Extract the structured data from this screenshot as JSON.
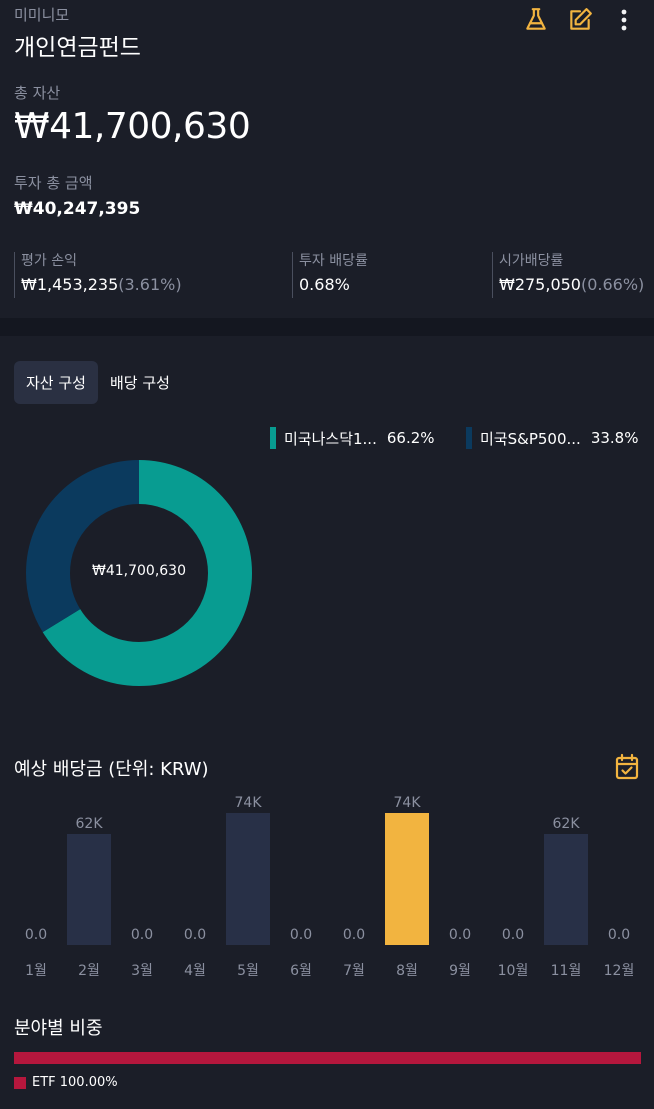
{
  "header": {
    "owner": "미미니모",
    "title": "개인연금펀드",
    "icons": [
      "flask-icon",
      "edit-icon",
      "more-vertical-icon"
    ]
  },
  "summary": {
    "total_label": "총 자산",
    "total_value": "₩41,700,630",
    "invest_label": "투자 총 금액",
    "invest_value": "₩40,247,395"
  },
  "stats": [
    {
      "label": "평가 손익",
      "value": "₩1,453,235",
      "sub": "(3.61%)"
    },
    {
      "label": "투자 배당률",
      "value": "0.68%",
      "sub": ""
    },
    {
      "label": "시가배당률",
      "value": "₩275,050",
      "sub": "(0.66%)"
    }
  ],
  "tabs": [
    {
      "label": "자산 구성",
      "active": true
    },
    {
      "label": "배당 구성",
      "active": false
    }
  ],
  "composition": {
    "center_label": "₩41,700,630",
    "items": [
      {
        "name": "미국나스닥1...",
        "pct": "66.2%",
        "value": 66.2,
        "color": "#089c91"
      },
      {
        "name": "미국S&P500...",
        "pct": "33.8%",
        "value": 33.8,
        "color": "#0b3a5e"
      }
    ]
  },
  "dividends": {
    "title": "예상 배당금 (단위: KRW)",
    "months": [
      "1월",
      "2월",
      "3월",
      "4월",
      "5월",
      "6월",
      "7월",
      "8월",
      "9월",
      "10월",
      "11월",
      "12월"
    ],
    "labels": [
      "0.0",
      "62K",
      "0.0",
      "0.0",
      "74K",
      "0.0",
      "0.0",
      "74K",
      "0.0",
      "0.0",
      "62K",
      "0.0"
    ],
    "values": [
      0,
      62,
      0,
      0,
      74,
      0,
      0,
      74,
      0,
      0,
      62,
      0
    ],
    "highlight_index": 7,
    "bar_color": "#283047",
    "highlight_color": "#f2b440"
  },
  "sectors": {
    "title": "분야별 비중",
    "items": [
      {
        "name": "ETF 100.00%",
        "value": 100,
        "color": "#b5173d"
      }
    ]
  }
}
